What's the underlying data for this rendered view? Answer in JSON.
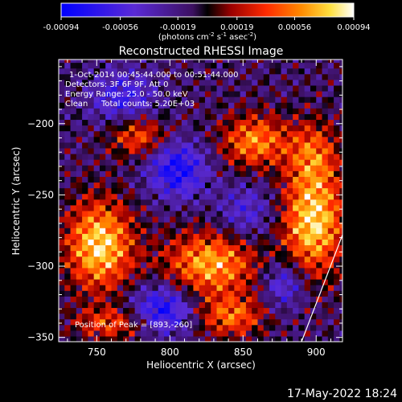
{
  "chart_data": {
    "type": "heatmap",
    "title": "Reconstructed RHESSI Image",
    "xlabel": "Heliocentric X (arcsec)",
    "ylabel": "Heliocentric Y (arcsec)",
    "xlim": [
      724,
      918
    ],
    "ylim": [
      -353,
      -155
    ],
    "xticks": [
      750,
      800,
      850,
      900
    ],
    "yticks": [
      -200,
      -250,
      -300,
      -350
    ],
    "colorbar": {
      "ticks": [
        "-0.00094",
        "-0.00056",
        "-0.00019",
        "0.00019",
        "0.00056",
        "0.00094"
      ],
      "values": [
        -0.00094,
        -0.00056,
        -0.00019,
        0.00019,
        0.00056,
        0.00094
      ],
      "range": [
        -0.00094,
        0.00094
      ],
      "unit_text": "(photons cm",
      "unit_sup1": "-2",
      "unit_mid1": " s",
      "unit_sup2": "-1",
      "unit_mid2": " asec",
      "unit_sup3": "-2",
      "unit_end": ")"
    },
    "info": {
      "line1": "1-Oct-2014 00:45:44.000 to 00:51:44.000",
      "line2": "Detectors: 3F 6F 9F, Att 0",
      "line3": "Energy Range: 25.0 - 50.0 keV",
      "line4a": "Clean",
      "line4b": "Total counts: 5.20E+03"
    },
    "peak": {
      "text": "Position of Peak = [893,-260]",
      "x": 893,
      "y": -260
    },
    "limb": [
      [
        890,
        -353
      ],
      [
        918,
        -278
      ]
    ],
    "bright_regions": [
      {
        "x": 752,
        "y": -285,
        "sx": 16,
        "sy": 22,
        "amp": 0.00094
      },
      {
        "x": 898,
        "y": -268,
        "sx": 15,
        "sy": 26,
        "amp": 0.00094
      },
      {
        "x": 828,
        "y": -298,
        "sx": 22,
        "sy": 16,
        "amp": 0.0008
      },
      {
        "x": 858,
        "y": -212,
        "sx": 16,
        "sy": 13,
        "amp": 0.0007
      },
      {
        "x": 778,
        "y": -208,
        "sx": 14,
        "sy": 10,
        "amp": 0.0006
      },
      {
        "x": 842,
        "y": -335,
        "sx": 16,
        "sy": 10,
        "amp": 0.0006
      },
      {
        "x": 898,
        "y": -220,
        "sx": 12,
        "sy": 16,
        "amp": 0.0005
      },
      {
        "x": 760,
        "y": -340,
        "sx": 18,
        "sy": 8,
        "amp": 0.0005
      }
    ],
    "dim_regions": [
      {
        "x": 805,
        "y": -232,
        "sx": 14,
        "sy": 14,
        "amp": -0.0007
      },
      {
        "x": 795,
        "y": -330,
        "sx": 15,
        "sy": 12,
        "amp": -0.0007
      },
      {
        "x": 768,
        "y": -182,
        "sx": 16,
        "sy": 14,
        "amp": -0.0005
      },
      {
        "x": 878,
        "y": -312,
        "sx": 10,
        "sy": 12,
        "amp": -0.0005
      },
      {
        "x": 852,
        "y": -262,
        "sx": 14,
        "sy": 14,
        "amp": -0.0004
      }
    ],
    "grid": false
  },
  "timestamp": "17-May-2022 18:24",
  "colors": {
    "background": "#000000",
    "limb": "#ffffff",
    "text": "#ffffff"
  }
}
